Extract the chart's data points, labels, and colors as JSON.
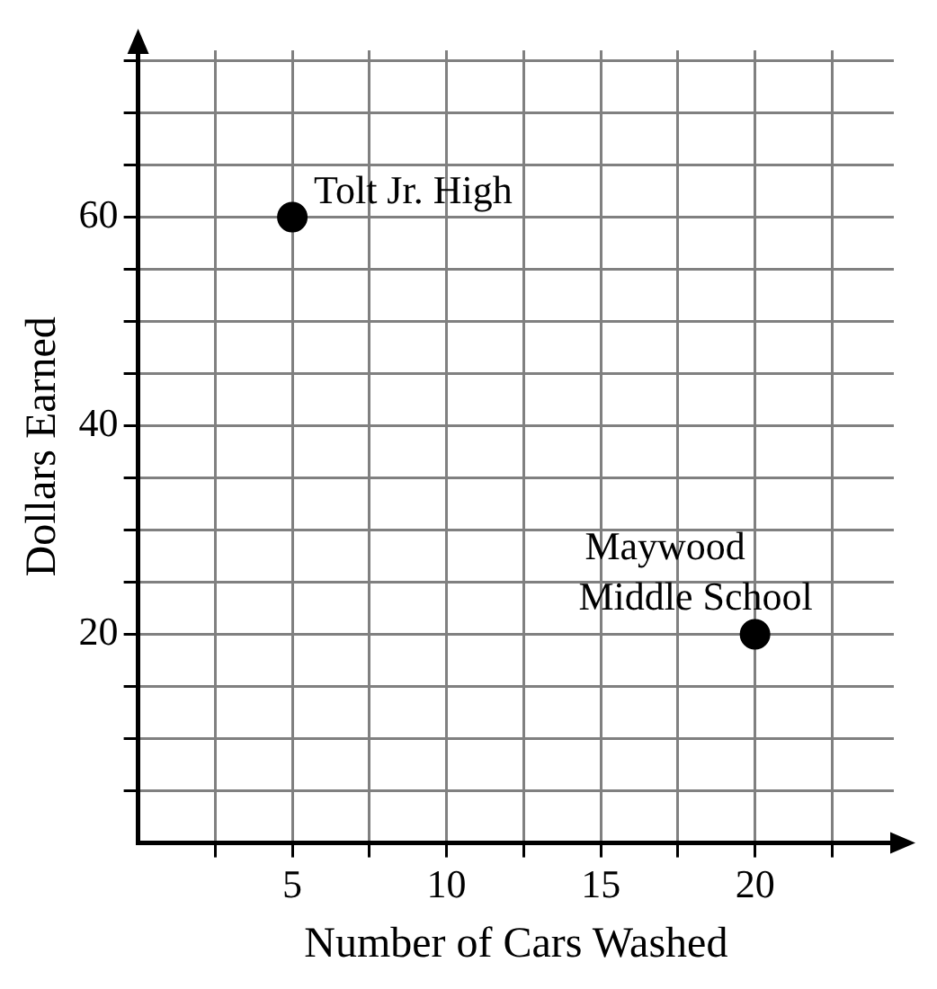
{
  "chart_data": {
    "type": "scatter",
    "xlabel": "Number of Cars Washed",
    "ylabel": "Dollars Earned",
    "x": [
      5,
      20
    ],
    "values": [
      60,
      20
    ],
    "color": "#000000",
    "marker": "circle",
    "xlim": [
      0,
      24.5
    ],
    "ylim": [
      0,
      76
    ],
    "xticks": [
      {
        "value": 2.5,
        "label": null
      },
      5,
      {
        "value": 7.5,
        "label": null
      },
      10,
      {
        "value": 12.5,
        "label": null
      },
      15,
      {
        "value": 17.5,
        "label": null
      },
      20,
      {
        "value": 22.5,
        "label": null
      }
    ],
    "yticks": [
      {
        "value": 5,
        "label": null
      },
      {
        "value": 10,
        "label": null
      },
      {
        "value": 15,
        "label": null
      },
      20,
      {
        "value": 25,
        "label": null
      },
      {
        "value": 30,
        "label": null
      },
      {
        "value": 35,
        "label": null
      },
      40,
      {
        "value": 45,
        "label": null
      },
      {
        "value": 50,
        "label": null
      },
      {
        "value": 55,
        "label": null
      },
      60,
      {
        "value": 65,
        "label": null
      },
      {
        "value": 70,
        "label": null
      },
      {
        "value": 75,
        "label": null
      }
    ],
    "grid": true,
    "legend": false,
    "annotations": [
      {
        "text": "Tolt Jr. High",
        "x": 5,
        "y": 60
      },
      {
        "text": "Maywood Middle School",
        "x": 20,
        "y": 20
      }
    ]
  }
}
